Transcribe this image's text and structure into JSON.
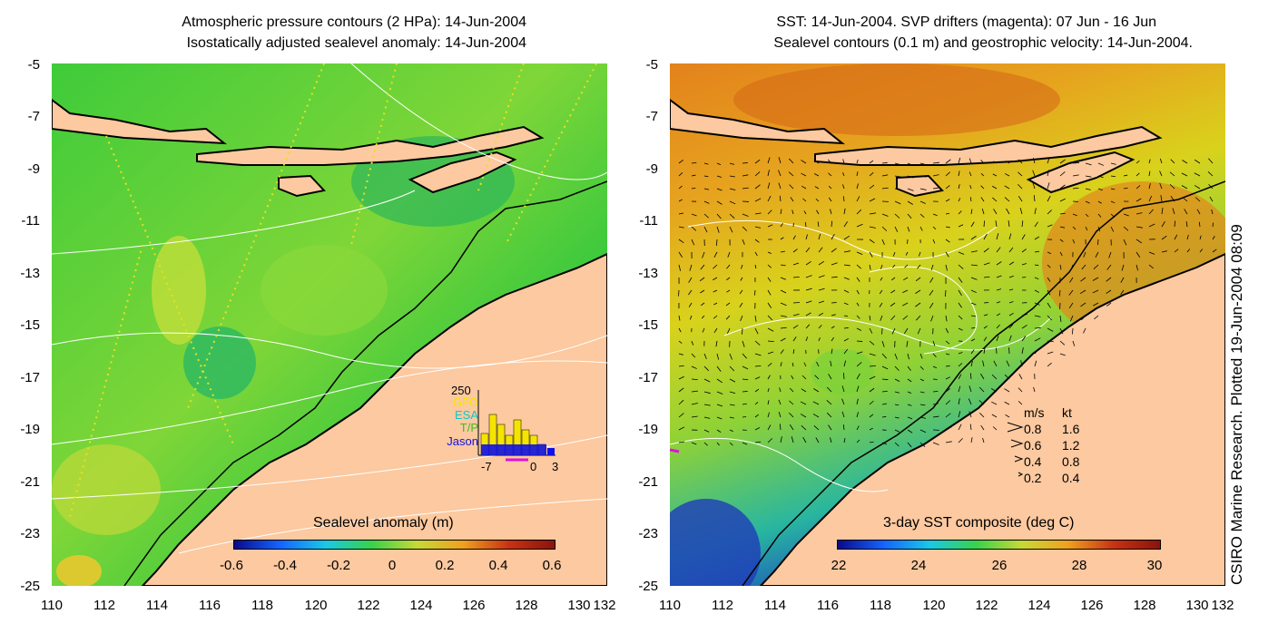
{
  "left_panel": {
    "title_line1": "Atmospheric pressure contours (2 HPa): 14-Jun-2004",
    "title_line2": "Isostatically adjusted sealevel anomaly: 14-Jun-2004",
    "y_ticks": [
      "-5",
      "-7",
      "-9",
      "-11",
      "-13",
      "-15",
      "-17",
      "-19",
      "-21",
      "-23",
      "-25"
    ],
    "x_ticks": [
      "110",
      "112",
      "114",
      "116",
      "118",
      "120",
      "122",
      "124",
      "126",
      "128",
      "130",
      "132"
    ],
    "colorbar": {
      "title": "Sealevel anomaly (m)",
      "labels": [
        "-0.6",
        "-0.4",
        "-0.2",
        "0",
        "0.2",
        "0.4",
        "0.6"
      ],
      "range": [
        -0.6,
        0.6
      ]
    },
    "inset": {
      "ymax_label": "250",
      "legend": [
        "GFO",
        "ESA",
        "T/P",
        "Jason"
      ],
      "legend_colors": [
        "#f5e400",
        "#10c8c8",
        "#3cc020",
        "#1010e6"
      ],
      "x_labels": [
        "-7",
        "0",
        "3"
      ]
    }
  },
  "right_panel": {
    "title_line1": "SST: 14-Jun-2004. SVP drifters (magenta): 07 Jun - 16 Jun",
    "title_line2": "Sealevel contours (0.1 m) and geostrophic velocity: 14-Jun-2004.",
    "y_ticks": [
      "-5",
      "-7",
      "-9",
      "-11",
      "-13",
      "-15",
      "-17",
      "-19",
      "-21",
      "-23",
      "-25"
    ],
    "x_ticks": [
      "110",
      "112",
      "114",
      "116",
      "118",
      "120",
      "122",
      "124",
      "126",
      "128",
      "130",
      "132"
    ],
    "colorbar": {
      "title": "3-day SST composite (deg C)",
      "labels": [
        "22",
        "24",
        "26",
        "28",
        "30"
      ],
      "range": [
        22,
        30
      ]
    },
    "velocity_legend": {
      "header_ms": "m/s",
      "header_kt": "kt",
      "rows": [
        {
          "ms": "0.8",
          "kt": "1.6"
        },
        {
          "ms": "0.6",
          "kt": "1.2"
        },
        {
          "ms": "0.4",
          "kt": "0.8"
        },
        {
          "ms": "0.2",
          "kt": "0.4"
        }
      ]
    }
  },
  "side_text": "CSIRO Marine Research. Plotted 19-Jun-2004 08:09",
  "colors": {
    "land": "#fcc9a0",
    "ocean_green": "#2fc43a",
    "ocean_mid": "#5bd23b",
    "sst_orange": "#e89a20",
    "sst_yellow": "#d8d21c",
    "sst_green": "#7ed43a",
    "sst_blue": "#2050c8",
    "coast": "#000000",
    "contour": "#ffffff"
  }
}
